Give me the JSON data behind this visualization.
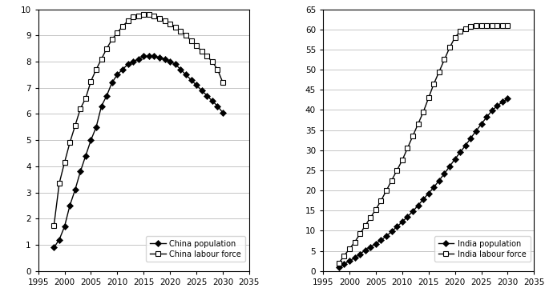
{
  "years_china": [
    1998,
    1999,
    2000,
    2001,
    2002,
    2003,
    2004,
    2005,
    2006,
    2007,
    2008,
    2009,
    2010,
    2011,
    2012,
    2013,
    2014,
    2015,
    2016,
    2017,
    2018,
    2019,
    2020,
    2021,
    2022,
    2023,
    2024,
    2025,
    2026,
    2027,
    2028,
    2029,
    2030
  ],
  "china_pop": [
    0.9,
    1.2,
    1.7,
    2.5,
    3.1,
    3.8,
    4.4,
    5.0,
    5.5,
    6.3,
    6.7,
    7.2,
    7.5,
    7.7,
    7.9,
    8.0,
    8.1,
    8.2,
    8.2,
    8.2,
    8.15,
    8.1,
    8.0,
    7.9,
    7.7,
    7.5,
    7.3,
    7.1,
    6.9,
    6.7,
    6.5,
    6.3,
    6.05
  ],
  "china_lf": [
    1.75,
    3.35,
    4.15,
    4.9,
    5.55,
    6.2,
    6.6,
    7.25,
    7.7,
    8.1,
    8.5,
    8.85,
    9.1,
    9.35,
    9.55,
    9.7,
    9.75,
    9.8,
    9.8,
    9.75,
    9.65,
    9.55,
    9.45,
    9.3,
    9.15,
    9.0,
    8.8,
    8.6,
    8.4,
    8.2,
    8.0,
    7.7,
    7.2
  ],
  "years_china_lf": [
    1998,
    1999,
    2000,
    2001,
    2002,
    2003,
    2004,
    2005,
    2006,
    2007,
    2008,
    2009,
    2010,
    2011,
    2012,
    2013,
    2014,
    2015,
    2016,
    2017,
    2018,
    2019,
    2020,
    2021,
    2022,
    2023,
    2024,
    2025,
    2026,
    2027,
    2028,
    2029,
    2030
  ],
  "years_india": [
    1998,
    1999,
    2000,
    2001,
    2002,
    2003,
    2004,
    2005,
    2006,
    2007,
    2008,
    2009,
    2010,
    2011,
    2012,
    2013,
    2014,
    2015,
    2016,
    2017,
    2018,
    2019,
    2020,
    2021,
    2022,
    2023,
    2024,
    2025,
    2026,
    2027,
    2028,
    2029,
    2030
  ],
  "india_pop": [
    1.0,
    1.8,
    2.5,
    3.3,
    4.2,
    5.2,
    6.0,
    6.8,
    7.7,
    8.7,
    9.8,
    11.0,
    12.2,
    13.5,
    14.8,
    16.3,
    17.8,
    19.3,
    20.8,
    22.5,
    24.2,
    26.0,
    27.8,
    29.5,
    31.2,
    33.0,
    34.8,
    36.5,
    38.2,
    39.8,
    41.0,
    42.0,
    42.8
  ],
  "india_lf": [
    2.0,
    3.8,
    5.5,
    7.2,
    9.2,
    11.3,
    13.3,
    15.3,
    17.5,
    20.0,
    22.5,
    25.0,
    27.5,
    30.5,
    33.5,
    36.5,
    39.5,
    43.0,
    46.5,
    49.5,
    52.5,
    55.5,
    58.0,
    59.5,
    60.2,
    60.8,
    61.0,
    61.0,
    61.0,
    61.0,
    61.0,
    61.0,
    61.0
  ],
  "china_ylim": [
    0,
    10
  ],
  "india_ylim": [
    0,
    65
  ],
  "china_yticks": [
    0,
    1,
    2,
    3,
    4,
    5,
    6,
    7,
    8,
    9,
    10
  ],
  "india_yticks": [
    0,
    5,
    10,
    15,
    20,
    25,
    30,
    35,
    40,
    45,
    50,
    55,
    60,
    65
  ],
  "xlim": [
    1995,
    2035
  ],
  "xticks": [
    1995,
    2000,
    2005,
    2010,
    2015,
    2020,
    2025,
    2030,
    2035
  ],
  "line_color": "#000000",
  "marker_pop": "D",
  "marker_lf": "s",
  "markersize_pop": 4,
  "markersize_lf": 4,
  "linewidth": 1.0,
  "legend_china_pop": "China population",
  "legend_china_lf": "China labour force",
  "legend_india_pop": "India population",
  "legend_india_lf": "India labour force",
  "bg_color": "#ffffff",
  "grid_color": "#bbbbbb"
}
